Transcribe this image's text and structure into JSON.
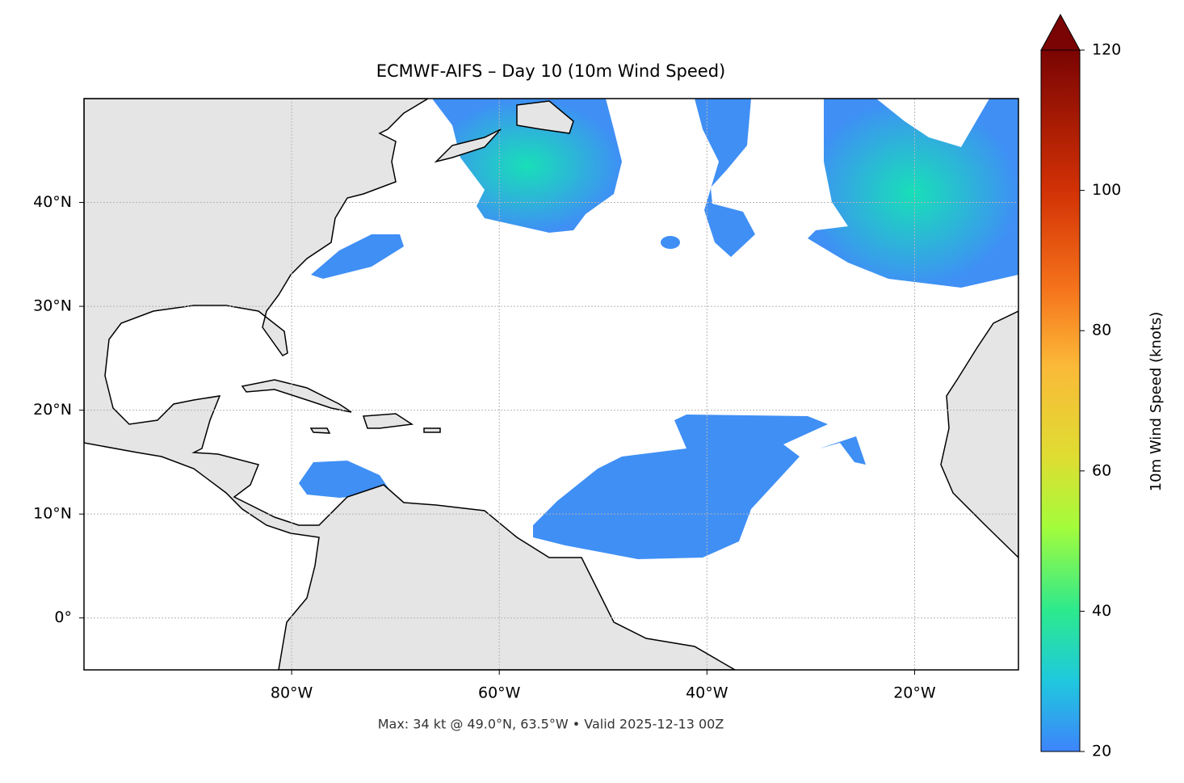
{
  "title": "ECMWF-AIFS – Day 10 (10m Wind Speed)",
  "footer": "Max: 34 kt @ 49.0°N, 63.5°W • Valid 2025-12-13 00Z",
  "map": {
    "lonlim": [
      -100,
      -10
    ],
    "latlim": [
      -5,
      50
    ],
    "lonticks": [
      {
        "value": -80,
        "label": "80°W"
      },
      {
        "value": -60,
        "label": "60°W"
      },
      {
        "value": -40,
        "label": "40°W"
      },
      {
        "value": -20,
        "label": "20°W"
      }
    ],
    "latticks": [
      {
        "value": 0,
        "label": "0°"
      },
      {
        "value": 10,
        "label": "10°N"
      },
      {
        "value": 20,
        "label": "20°N"
      },
      {
        "value": 30,
        "label": "30°N"
      },
      {
        "value": 40,
        "label": "40°N"
      }
    ],
    "grid": true
  },
  "colorbar": {
    "label": "10m Wind Speed (knots)",
    "lim": [
      20,
      120
    ],
    "ticks": [
      20,
      40,
      60,
      80,
      100,
      120
    ],
    "extend": "max"
  }
}
